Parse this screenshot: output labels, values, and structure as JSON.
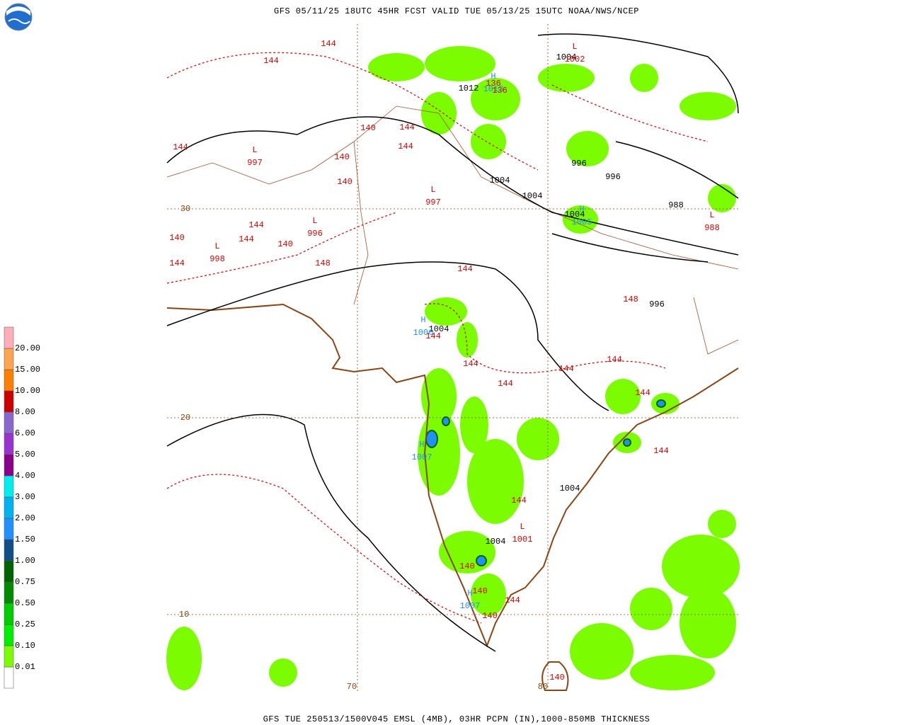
{
  "header": {
    "title": "GFS 05/11/25 18UTC 45HR FCST VALID TUE 05/13/25 15UTC NOAA/NWS/NCEP"
  },
  "footer": {
    "text": "GFS TUE 250513/1500V045 EMSL (4MB), 03HR PCPN (IN),1000-850MB THICKNESS"
  },
  "legend": {
    "labels": [
      "0.01",
      "0.10",
      "0.25",
      "0.50",
      "0.75",
      "1.00",
      "1.50",
      "2.00",
      "3.00",
      "4.00",
      "5.00",
      "6.00",
      "8.00",
      "10.00",
      "15.00",
      "20.00"
    ],
    "colors": [
      "#ffffff",
      "#7cfc00",
      "#00ee00",
      "#00cd00",
      "#008b00",
      "#006400",
      "#104e8b",
      "#1e90ff",
      "#00b2ee",
      "#00eeee",
      "#8b008b",
      "#9a32cd",
      "#8968cd",
      "#cd0000",
      "#ff7f00",
      "#ffa54f",
      "#ffaeb9"
    ]
  },
  "grid_labels": {
    "lat": [
      "30",
      "20",
      "10"
    ],
    "lon": [
      "70",
      "80"
    ],
    "color": "#8b4513"
  },
  "isobar_labels": {
    "color": "#000000",
    "texts": [
      "1004",
      "1012",
      "996",
      "996",
      "1004",
      "1004",
      "988",
      "1004",
      "996",
      "1004",
      "1004",
      "1004"
    ]
  },
  "thickness_labels": {
    "color": "#dd0000",
    "texts": [
      "144",
      "144",
      "144",
      "144",
      "144",
      "144",
      "144",
      "144",
      "144",
      "144",
      "144",
      "144",
      "144",
      "144",
      "144",
      "144",
      "144",
      "144",
      "140",
      "140",
      "140",
      "140",
      "140",
      "140",
      "140",
      "140",
      "140",
      "148",
      "148",
      "136",
      "136"
    ]
  },
  "lows": {
    "color": "#dd0000",
    "symbol": "L",
    "values": [
      "1002",
      "997",
      "997",
      "996",
      "998",
      "988",
      "1001"
    ]
  },
  "highs": {
    "color": "#1e90ff",
    "symbol": "H",
    "values": [
      "1013",
      "1006",
      "1005",
      "1007",
      "1007"
    ]
  }
}
